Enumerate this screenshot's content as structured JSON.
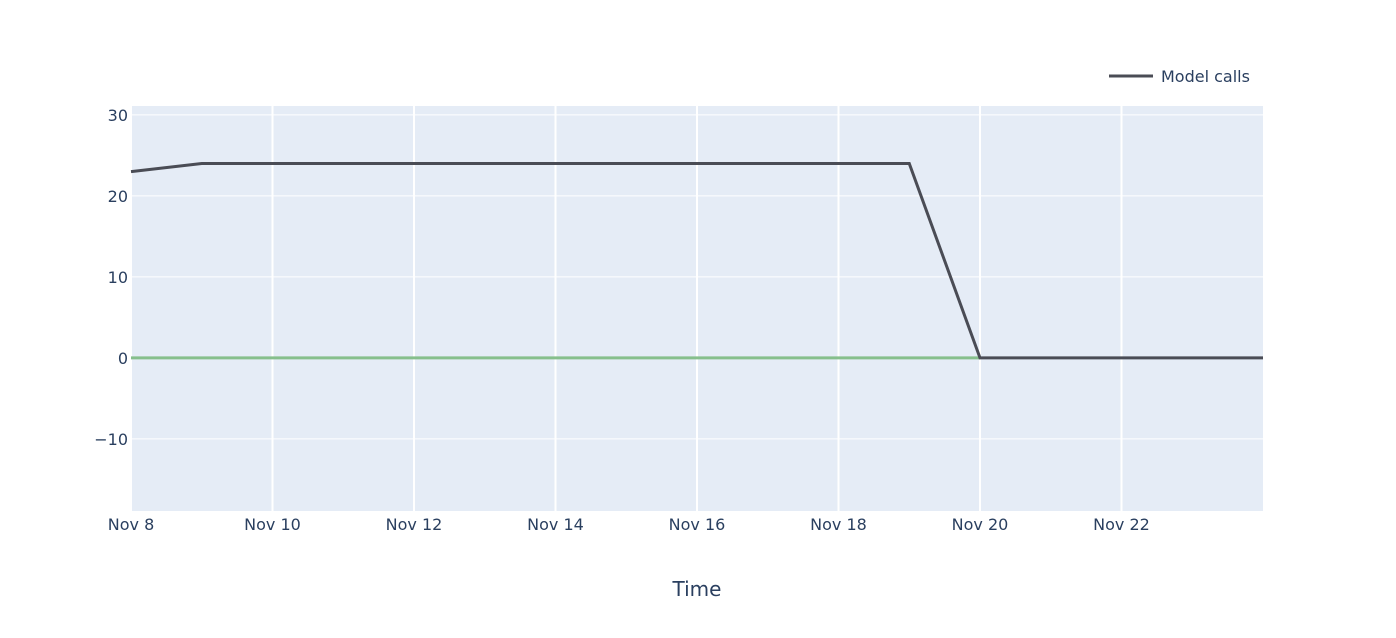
{
  "chart_data": {
    "type": "line",
    "title": "",
    "xlabel": "Time",
    "ylabel": "",
    "x_range": [
      "2023-11-08",
      "2023-11-24"
    ],
    "ylim": [
      -18.9,
      31.1
    ],
    "x_ticks": [
      "Nov 8",
      "Nov 10",
      "Nov 12",
      "Nov 14",
      "Nov 16",
      "Nov 18",
      "Nov 20",
      "Nov 22"
    ],
    "x_tick_dates": [
      "2023-11-08",
      "2023-11-10",
      "2023-11-12",
      "2023-11-14",
      "2023-11-16",
      "2023-11-18",
      "2023-11-20",
      "2023-11-22"
    ],
    "y_ticks": [
      30,
      20,
      10,
      0,
      -10
    ],
    "y_tick_labels": [
      "30",
      "20",
      "10",
      "0",
      "−10"
    ],
    "grid": true,
    "legend_position": "top-right",
    "background_color": "#e5ecf6",
    "series": [
      {
        "name": "",
        "color": "#86bf8c",
        "x": [
          "2023-11-08",
          "2023-11-09",
          "2023-11-10",
          "2023-11-11",
          "2023-11-12",
          "2023-11-13",
          "2023-11-14",
          "2023-11-15",
          "2023-11-16",
          "2023-11-17",
          "2023-11-18",
          "2023-11-19",
          "2023-11-20"
        ],
        "values": [
          0,
          0,
          0,
          0,
          0,
          0,
          0,
          0,
          0,
          0,
          0,
          0,
          0
        ]
      },
      {
        "name": "Model calls",
        "color": "#4a4c55",
        "x": [
          "2023-11-08",
          "2023-11-09",
          "2023-11-10",
          "2023-11-11",
          "2023-11-12",
          "2023-11-13",
          "2023-11-14",
          "2023-11-15",
          "2023-11-16",
          "2023-11-17",
          "2023-11-18",
          "2023-11-19",
          "2023-11-20",
          "2023-11-21",
          "2023-11-22",
          "2023-11-23",
          "2023-11-24"
        ],
        "values": [
          23,
          24,
          24,
          24,
          24,
          24,
          24,
          24,
          24,
          24,
          24,
          24,
          0,
          0,
          0,
          0,
          0
        ]
      }
    ]
  }
}
